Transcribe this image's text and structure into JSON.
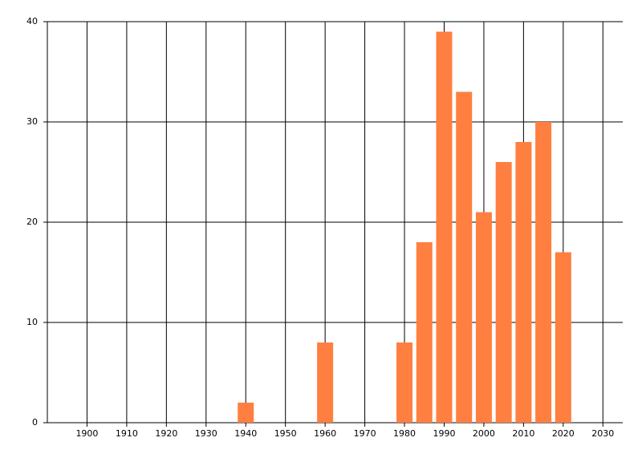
{
  "chart_data": {
    "type": "bar",
    "x": [
      1940,
      1960,
      1980,
      1985,
      1990,
      1995,
      2000,
      2005,
      2010,
      2015,
      2020
    ],
    "values": [
      2,
      8,
      8,
      18,
      39,
      33,
      21,
      26,
      28,
      30,
      17
    ],
    "color": "#ff7f40",
    "xlim": [
      1890,
      2035
    ],
    "xticks": [
      1900,
      1910,
      1920,
      1930,
      1940,
      1950,
      1960,
      1970,
      1980,
      1990,
      2000,
      2010,
      2020,
      2030
    ],
    "ylim": [
      0,
      40
    ],
    "yticks": [
      0,
      10,
      20,
      30,
      40
    ],
    "grid": true
  }
}
